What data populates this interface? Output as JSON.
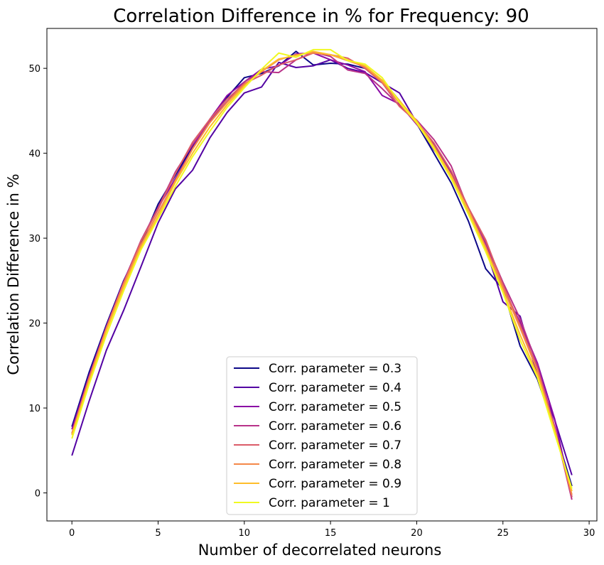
{
  "chart_data": {
    "type": "line",
    "title": "Correlation Difference in % for Frequency:  90",
    "xlabel": "Number of decorrelated neurons",
    "ylabel": "Correlation Difference in %",
    "xlim": [
      -1.45,
      30.45
    ],
    "ylim": [
      -3.3,
      54.7
    ],
    "xticks": [
      0,
      5,
      10,
      15,
      20,
      25,
      30
    ],
    "xtick_labels": [
      "0",
      "5",
      "10",
      "15",
      "20",
      "25",
      "30"
    ],
    "yticks": [
      0,
      10,
      20,
      30,
      40,
      50
    ],
    "ytick_labels": [
      "0",
      "10",
      "20",
      "30",
      "40",
      "50"
    ],
    "grid": false,
    "legend_position": "lower-center",
    "x": [
      0,
      1,
      2,
      3,
      4,
      5,
      6,
      7,
      8,
      9,
      10,
      11,
      12,
      13,
      14,
      15,
      16,
      17,
      18,
      19,
      20,
      21,
      22,
      23,
      24,
      25,
      26,
      27,
      28,
      29
    ],
    "series": [
      {
        "name": "Corr. parameter = 0.3",
        "color": "#0d0887",
        "values": [
          7.8,
          14.2,
          19.8,
          25.0,
          29.2,
          34.0,
          37.4,
          40.8,
          43.8,
          46.6,
          48.9,
          49.4,
          50.3,
          52.0,
          50.4,
          50.6,
          50.5,
          50.0,
          48.6,
          46.2,
          43.5,
          40.0,
          36.5,
          32.0,
          26.4,
          24.0,
          17.3,
          13.4,
          7.5,
          0.8
        ]
      },
      {
        "name": "Corr. parameter = 0.4",
        "color": "#5302a3",
        "values": [
          4.4,
          10.8,
          16.8,
          21.5,
          26.6,
          31.8,
          35.8,
          38.0,
          41.8,
          44.8,
          47.1,
          47.8,
          50.7,
          50.1,
          50.3,
          51.0,
          50.0,
          49.5,
          48.3,
          47.1,
          43.6,
          40.4,
          37.8,
          33.0,
          28.8,
          22.5,
          20.8,
          13.8,
          8.6,
          2.1
        ]
      },
      {
        "name": "Corr. parameter = 0.5",
        "color": "#8b0aa5",
        "values": [
          7.5,
          13.8,
          19.6,
          24.9,
          29.6,
          33.6,
          37.0,
          40.6,
          44.0,
          46.8,
          48.4,
          49.9,
          50.3,
          51.7,
          51.8,
          51.0,
          50.4,
          49.6,
          46.8,
          45.8,
          43.4,
          41.0,
          37.7,
          33.2,
          29.3,
          24.0,
          20.1,
          15.3,
          8.7,
          -0.5
        ]
      },
      {
        "name": "Corr. parameter = 0.6",
        "color": "#b83289",
        "values": [
          7.0,
          13.6,
          19.5,
          24.8,
          29.7,
          33.6,
          37.8,
          41.0,
          43.8,
          46.1,
          48.4,
          49.6,
          49.5,
          51.0,
          51.9,
          51.4,
          49.8,
          49.4,
          47.6,
          45.6,
          43.9,
          41.6,
          38.5,
          33.4,
          29.5,
          24.8,
          20.5,
          15.0,
          7.8,
          -0.8
        ]
      },
      {
        "name": "Corr. parameter = 0.7",
        "color": "#db5c68",
        "values": [
          7.0,
          13.6,
          19.4,
          24.7,
          29.6,
          33.4,
          37.6,
          41.3,
          44.0,
          46.4,
          48.2,
          49.2,
          50.4,
          51.0,
          51.8,
          51.6,
          51.2,
          50.0,
          48.3,
          45.5,
          43.7,
          41.2,
          37.9,
          33.6,
          29.8,
          24.5,
          19.8,
          14.6,
          7.6,
          -0.5
        ]
      },
      {
        "name": "Corr. parameter = 0.8",
        "color": "#f48849",
        "values": [
          7.0,
          13.4,
          19.3,
          24.6,
          29.2,
          33.0,
          36.8,
          40.5,
          43.6,
          46.0,
          48.1,
          49.6,
          51.0,
          51.6,
          51.8,
          51.6,
          50.9,
          50.2,
          48.4,
          45.9,
          43.5,
          40.7,
          37.3,
          33.3,
          29.0,
          24.2,
          19.4,
          14.4,
          7.5,
          -0.2
        ]
      },
      {
        "name": "Corr. parameter = 0.9",
        "color": "#febd2a",
        "values": [
          6.8,
          13.1,
          19.1,
          24.2,
          28.9,
          32.6,
          36.6,
          40.0,
          43.1,
          45.7,
          47.9,
          49.7,
          51.1,
          51.5,
          52.0,
          51.6,
          51.0,
          50.3,
          48.6,
          46.2,
          43.8,
          40.8,
          37.4,
          33.2,
          28.7,
          23.8,
          18.6,
          13.9,
          7.3,
          0.2
        ]
      },
      {
        "name": "Corr. parameter = 1",
        "color": "#f0f921",
        "values": [
          6.4,
          12.8,
          18.6,
          23.8,
          28.6,
          32.3,
          36.1,
          39.6,
          42.6,
          45.4,
          47.7,
          49.9,
          51.8,
          51.3,
          52.2,
          52.2,
          50.9,
          50.5,
          48.9,
          46.0,
          43.6,
          40.5,
          37.0,
          32.8,
          28.4,
          23.6,
          18.0,
          13.6,
          7.0,
          0.5
        ]
      }
    ]
  }
}
